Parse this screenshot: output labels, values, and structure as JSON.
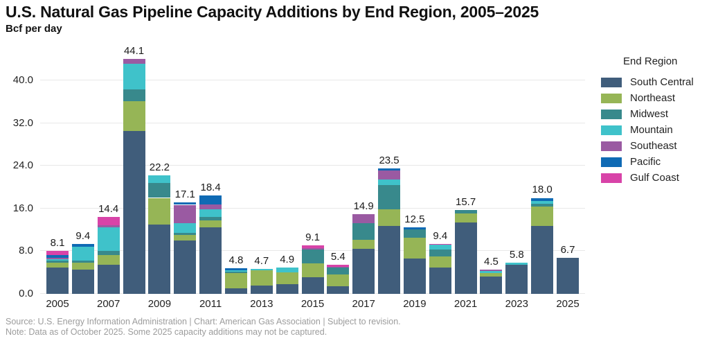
{
  "header": {
    "title": "U.S. Natural Gas Pipeline Capacity Additions by End Region, 2005–2025",
    "subtitle": "Bcf per day"
  },
  "legend": {
    "title": "End Region"
  },
  "footer": {
    "line1": "Source: U.S. Energy Information Administration | Chart: American Gas Association | Subject to revision.",
    "line2": "Note: Data as of October 2025. Some 2025 capacity additions may not be captured."
  },
  "chart_data": {
    "type": "bar",
    "stacked": true,
    "title": "U.S. Natural Gas Pipeline Capacity Additions by End Region, 2005–2025",
    "ylabel": "Bcf per day",
    "ylim": [
      0,
      46
    ],
    "ytick_values": [
      0,
      8,
      16,
      24,
      32,
      40
    ],
    "ytick_labels": [
      "0.0",
      "8.0",
      "16.0",
      "24.0",
      "32.0",
      "40.0"
    ],
    "grid": true,
    "legend_position": "right",
    "categories": [
      2005,
      2006,
      2007,
      2008,
      2009,
      2010,
      2011,
      2012,
      2013,
      2014,
      2015,
      2016,
      2017,
      2018,
      2019,
      2020,
      2021,
      2022,
      2023,
      2024,
      2025
    ],
    "xtick_labels": [
      "2005",
      "2007",
      "2009",
      "2011",
      "2013",
      "2015",
      "2017",
      "2019",
      "2021",
      "2023",
      "2025"
    ],
    "totals": [
      8.1,
      9.4,
      14.4,
      44.1,
      22.2,
      17.1,
      18.4,
      4.8,
      4.7,
      4.9,
      9.1,
      5.4,
      14.9,
      23.5,
      12.5,
      9.4,
      15.7,
      4.5,
      5.8,
      18.0,
      6.7
    ],
    "totals_labels": [
      "8.1",
      "9.4",
      "14.4",
      "44.1",
      "22.2",
      "17.1",
      "18.4",
      "4.8",
      "4.7",
      "4.9",
      "9.1",
      "5.4",
      "14.9",
      "23.5",
      "12.5",
      "9.4",
      "15.7",
      "4.5",
      "5.8",
      "18.0",
      "6.7"
    ],
    "series": [
      {
        "name": "South Central",
        "color": "#405d7b",
        "values": [
          5.0,
          4.6,
          5.4,
          30.6,
          13.0,
          10.0,
          12.5,
          1.1,
          1.5,
          1.8,
          3.1,
          1.4,
          8.4,
          12.7,
          6.6,
          4.9,
          13.4,
          3.3,
          5.5,
          12.7,
          6.7
        ]
      },
      {
        "name": "Northeast",
        "color": "#96b556",
        "values": [
          0.8,
          1.2,
          1.9,
          5.5,
          5.0,
          1.1,
          1.3,
          2.8,
          2.9,
          2.2,
          2.6,
          2.2,
          1.7,
          3.2,
          3.9,
          2.1,
          1.7,
          0.6,
          0,
          3.7,
          0
        ]
      },
      {
        "name": "Midwest",
        "color": "#38898c",
        "values": [
          0.4,
          0.5,
          0.7,
          2.2,
          2.8,
          0.4,
          0.6,
          0.2,
          0,
          0,
          2.6,
          1.3,
          3.1,
          4.5,
          1.6,
          1.3,
          0.6,
          0,
          0,
          0.5,
          0
        ]
      },
      {
        "name": "Mountain",
        "color": "#3fc2ca",
        "values": [
          0.3,
          2.5,
          4.5,
          4.8,
          1.4,
          1.7,
          1.5,
          0.3,
          0.3,
          0.9,
          0,
          0,
          0,
          1.1,
          0,
          0.9,
          0,
          0.4,
          0.3,
          0.5,
          0
        ]
      },
      {
        "name": "Southeast",
        "color": "#9a5aa2",
        "values": [
          0.2,
          0,
          0.4,
          1.0,
          0,
          3.5,
          0.9,
          0,
          0,
          0,
          0.3,
          0.2,
          1.7,
          1.6,
          0,
          0,
          0,
          0.2,
          0,
          0,
          0
        ]
      },
      {
        "name": "Pacific",
        "color": "#0f6ab4",
        "values": [
          0.6,
          0.6,
          0,
          0,
          0,
          0.4,
          1.6,
          0.4,
          0,
          0,
          0,
          0,
          0,
          0.4,
          0.4,
          0,
          0,
          0,
          0,
          0.6,
          0
        ]
      },
      {
        "name": "Gulf Coast",
        "color": "#d843a8",
        "values": [
          0.8,
          0,
          1.5,
          0,
          0,
          0,
          0,
          0,
          0,
          0,
          0.5,
          0.3,
          0,
          0,
          0,
          0.2,
          0,
          0,
          0,
          0,
          0
        ]
      }
    ]
  }
}
